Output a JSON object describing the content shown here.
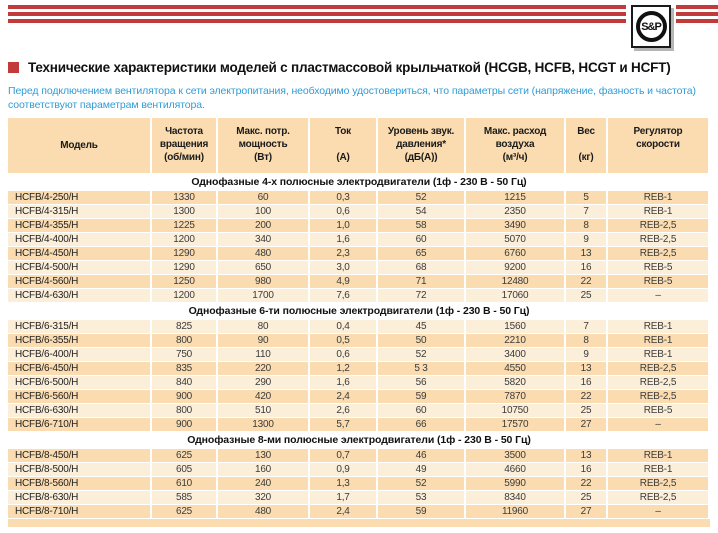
{
  "brand": {
    "logo_text": "S&P"
  },
  "header": {
    "title": "Технические характеристики моделей с пластмассовой крыльчаткой (HCGB, HCFB, HCGT и HCFT)",
    "intro": "Перед подключением вентилятора к сети электропитания, необходимо удостовериться, что параметры сети (напряжение, фазность и частота) соответствуют параметрам вентилятора."
  },
  "table": {
    "columns": [
      {
        "key": "model",
        "lines": [
          "Модель",
          "",
          ""
        ]
      },
      {
        "key": "speed",
        "lines": [
          "Частота",
          "вращения",
          "(об/мин)"
        ]
      },
      {
        "key": "power",
        "lines": [
          "Макс. потр.",
          "мощность",
          "(Вт)"
        ]
      },
      {
        "key": "current",
        "lines": [
          "Ток",
          "",
          "(А)"
        ]
      },
      {
        "key": "noise",
        "lines": [
          "Уровень звук.",
          "давления*",
          "(дБ(А))"
        ]
      },
      {
        "key": "airflow",
        "lines": [
          "Макс. расход",
          "воздуха",
          "(м³/ч)"
        ]
      },
      {
        "key": "weight",
        "lines": [
          "Вес",
          "",
          "(кг)"
        ]
      },
      {
        "key": "controller",
        "lines": [
          "Регулятор",
          "скорости",
          ""
        ]
      }
    ],
    "sections": [
      {
        "header": "Однофазные 4-х полюсные электродвигатели (1ф - 230 В - 50 Гц)",
        "rows": [
          [
            "HCFB/4-250/H",
            "1330",
            "60",
            "0,3",
            "52",
            "1215",
            "5",
            "REB-1"
          ],
          [
            "HCFB/4-315/H",
            "1300",
            "100",
            "0,6",
            "54",
            "2350",
            "7",
            "REB-1"
          ],
          [
            "HCFB/4-355/H",
            "1225",
            "200",
            "1,0",
            "58",
            "3490",
            "8",
            "REB-2,5"
          ],
          [
            "HCFB/4-400/H",
            "1200",
            "340",
            "1,6",
            "60",
            "5070",
            "9",
            "REB-2,5"
          ],
          [
            "HCFB/4-450/H",
            "1290",
            "480",
            "2,3",
            "65",
            "6760",
            "13",
            "REB-2,5"
          ],
          [
            "HCFB/4-500/H",
            "1290",
            "650",
            "3,0",
            "68",
            "9200",
            "16",
            "REB-5"
          ],
          [
            "HCFB/4-560/H",
            "1250",
            "980",
            "4,9",
            "71",
            "12480",
            "22",
            "REB-5"
          ],
          [
            "HCFB/4-630/H",
            "1200",
            "1700",
            "7,6",
            "72",
            "17060",
            "25",
            "–"
          ]
        ]
      },
      {
        "header": "Однофазные 6-ти полюсные электродвигатели (1ф - 230 В - 50 Гц)",
        "rows": [
          [
            "HCFB/6-315/H",
            "825",
            "80",
            "0,4",
            "45",
            "1560",
            "7",
            "REB-1"
          ],
          [
            "HCFB/6-355/H",
            "800",
            "90",
            "0,5",
            "50",
            "2210",
            "8",
            "REB-1"
          ],
          [
            "HCFB/6-400/H",
            "750",
            "110",
            "0,6",
            "52",
            "3400",
            "9",
            "REB-1"
          ],
          [
            "HCFB/6-450/H",
            "835",
            "220",
            "1,2",
            "5 3",
            "4550",
            "13",
            "REB-2,5"
          ],
          [
            "HCFB/6-500/H",
            "840",
            "290",
            "1,6",
            "56",
            "5820",
            "16",
            "REB-2,5"
          ],
          [
            "HCFB/6-560/H",
            "900",
            "420",
            "2,4",
            "59",
            "7870",
            "22",
            "REB-2,5"
          ],
          [
            "HCFB/6-630/H",
            "800",
            "510",
            "2,6",
            "60",
            "10750",
            "25",
            "REB-5"
          ],
          [
            "HCFB/6-710/H",
            "900",
            "1300",
            "5,7",
            "66",
            "17570",
            "27",
            "–"
          ]
        ]
      },
      {
        "header": "Однофазные 8-ми полюсные электродвигатели (1ф - 230 В - 50 Гц)",
        "rows": [
          [
            "HCFB/8-450/H",
            "625",
            "130",
            "0,7",
            "46",
            "3500",
            "13",
            "REB-1"
          ],
          [
            "HCFB/8-500/H",
            "605",
            "160",
            "0,9",
            "49",
            "4660",
            "16",
            "REB-1"
          ],
          [
            "HCFB/8-560/H",
            "610",
            "240",
            "1,3",
            "52",
            "5990",
            "22",
            "REB-2,5"
          ],
          [
            "HCFB/8-630/H",
            "585",
            "320",
            "1,7",
            "53",
            "8340",
            "25",
            "REB-2,5"
          ],
          [
            "HCFB/8-710/H",
            "625",
            "480",
            "2,4",
            "59",
            "11960",
            "27",
            "–"
          ]
        ]
      }
    ]
  },
  "colors": {
    "accent_red": "#C23B3B",
    "link_blue": "#2F9CD6",
    "row_peach": "#FADCB0",
    "row_cream": "#FCEFDA"
  }
}
